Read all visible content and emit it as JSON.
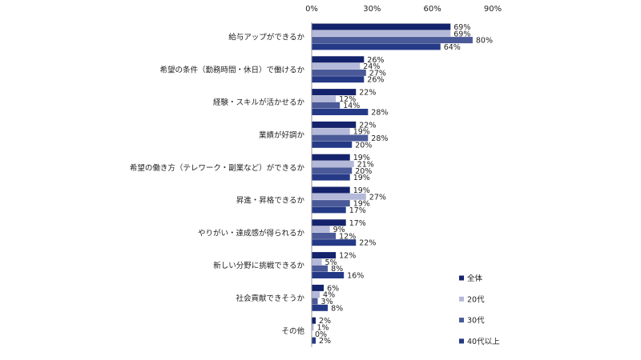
{
  "chart_data": {
    "type": "bar",
    "orientation": "horizontal",
    "categories": [
      "給与アップができるか",
      "希望の条件（勤務時間・休日）で働けるか",
      "経験・スキルが活かせるか",
      "業績が好調か",
      "希望の働き方（テレワーク・副業など）ができるか",
      "昇進・昇格できるか",
      "やりがい・達成感が得られるか",
      "新しい分野に挑戦できるか",
      "社会貢献できそうか",
      "その他"
    ],
    "series": [
      {
        "name": "全体",
        "color": "#14236b",
        "values": [
          69,
          26,
          22,
          22,
          19,
          19,
          17,
          12,
          6,
          2
        ]
      },
      {
        "name": "20代",
        "color": "#b4b9d9",
        "values": [
          69,
          24,
          12,
          19,
          21,
          27,
          9,
          5,
          4,
          1
        ]
      },
      {
        "name": "30代",
        "color": "#4a5998",
        "values": [
          80,
          27,
          14,
          28,
          20,
          19,
          12,
          8,
          3,
          0
        ]
      },
      {
        "name": "40代以上",
        "color": "#253a86",
        "values": [
          64,
          26,
          28,
          20,
          19,
          17,
          22,
          16,
          8,
          2
        ]
      }
    ],
    "xlim": [
      0,
      90
    ],
    "xticks": [
      0,
      30,
      60,
      90
    ],
    "xtick_labels": [
      "0%",
      "30%",
      "60%",
      "90%"
    ],
    "value_suffix": "%",
    "legend_position": "right",
    "grid": false
  }
}
